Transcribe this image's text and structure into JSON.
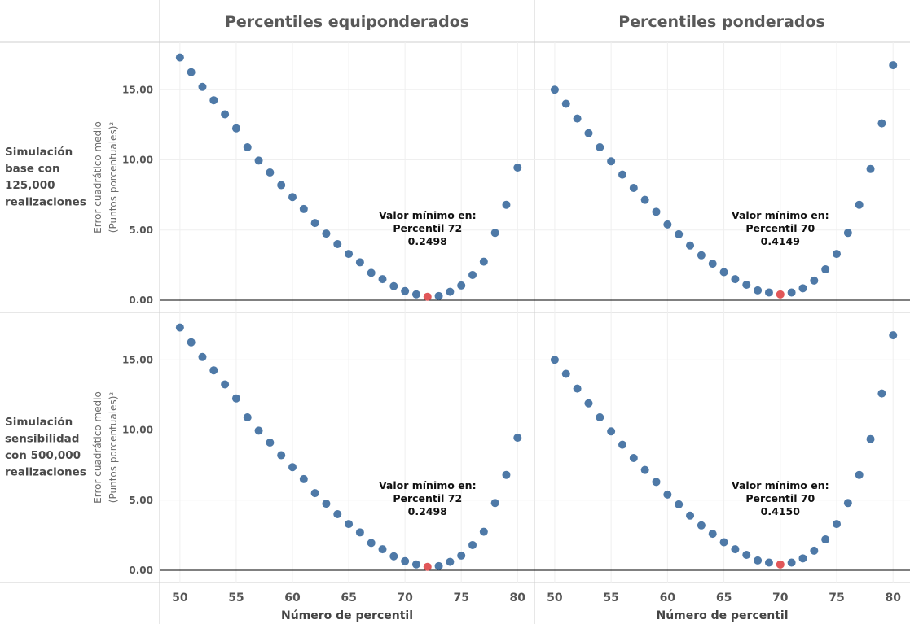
{
  "colors": {
    "point": "#4e79a7",
    "min_point": "#e15759",
    "zero_line": "#000000"
  },
  "columns": [
    "Percentiles equiponderados",
    "Percentiles ponderados"
  ],
  "rows": [
    [
      "Simulación",
      "base con",
      "125,000",
      "realizaciones"
    ],
    [
      "Simulación",
      "sensibilidad",
      "con 500,000",
      "realizaciones"
    ]
  ],
  "ylabel": [
    "Error cuadrático medio",
    "(Puntos porcentuales)²"
  ],
  "xlabel": "Número de percentil",
  "chart_data": {
    "type": "scatter",
    "x": [
      50,
      51,
      52,
      53,
      54,
      55,
      56,
      57,
      58,
      59,
      60,
      61,
      62,
      63,
      64,
      65,
      66,
      67,
      68,
      69,
      70,
      71,
      72,
      73,
      74,
      75,
      76,
      77,
      78,
      79,
      80
    ],
    "ylim": [
      0,
      17.6
    ],
    "xlim": [
      48.2,
      81.5
    ],
    "y_ticks": [
      0,
      5,
      10,
      15
    ],
    "y_tick_labels": [
      "0.00",
      "5.00",
      "10.00",
      "15.00"
    ],
    "x_ticks": [
      50,
      55,
      60,
      65,
      70,
      75,
      80
    ],
    "grid": true,
    "panels": [
      {
        "row": 0,
        "col": 0,
        "y": [
          17.3,
          16.25,
          15.2,
          14.25,
          13.25,
          12.25,
          10.9,
          9.95,
          9.1,
          8.2,
          7.35,
          6.5,
          5.5,
          4.75,
          4.0,
          3.3,
          2.7,
          1.95,
          1.5,
          1.0,
          0.65,
          0.42,
          0.2498,
          0.3,
          0.6,
          1.05,
          1.8,
          2.75,
          4.8,
          6.8,
          9.45
        ],
        "min_x": 72,
        "annotation": [
          "Valor mínimo en:",
          "Percentil 72",
          "0.2498"
        ]
      },
      {
        "row": 0,
        "col": 1,
        "y": [
          15.0,
          14.0,
          12.95,
          11.9,
          10.9,
          9.9,
          8.95,
          8.0,
          7.15,
          6.3,
          5.4,
          4.7,
          3.9,
          3.2,
          2.6,
          2.0,
          1.5,
          1.1,
          0.7,
          0.55,
          0.4149,
          0.55,
          0.85,
          1.4,
          2.2,
          3.3,
          4.8,
          6.8,
          9.35,
          12.6,
          16.75
        ],
        "min_x": 70,
        "annotation": [
          "Valor mínimo en:",
          "Percentil 70",
          "0.4149"
        ]
      },
      {
        "row": 1,
        "col": 0,
        "y": [
          17.3,
          16.25,
          15.2,
          14.25,
          13.25,
          12.25,
          10.9,
          9.95,
          9.1,
          8.2,
          7.35,
          6.5,
          5.5,
          4.75,
          4.0,
          3.3,
          2.7,
          1.95,
          1.5,
          1.0,
          0.65,
          0.42,
          0.2498,
          0.3,
          0.6,
          1.05,
          1.8,
          2.75,
          4.8,
          6.8,
          9.45
        ],
        "min_x": 72,
        "annotation": [
          "Valor mínimo en:",
          "Percentil 72",
          "0.2498"
        ]
      },
      {
        "row": 1,
        "col": 1,
        "y": [
          15.0,
          14.0,
          12.95,
          11.9,
          10.9,
          9.9,
          8.95,
          8.0,
          7.15,
          6.3,
          5.4,
          4.7,
          3.9,
          3.2,
          2.6,
          2.0,
          1.5,
          1.1,
          0.7,
          0.55,
          0.415,
          0.55,
          0.85,
          1.4,
          2.2,
          3.3,
          4.8,
          6.8,
          9.35,
          12.6,
          16.75
        ],
        "min_x": 70,
        "annotation": [
          "Valor mínimo en:",
          "Percentil 70",
          "0.4150"
        ]
      }
    ]
  }
}
